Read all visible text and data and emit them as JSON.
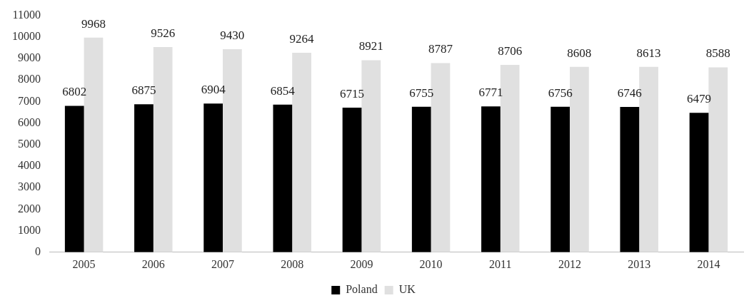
{
  "chart_data": {
    "type": "bar",
    "categories": [
      "2005",
      "2006",
      "2007",
      "2008",
      "2009",
      "2010",
      "2011",
      "2012",
      "2013",
      "2014"
    ],
    "series": [
      {
        "name": "Poland",
        "color": "#000000",
        "values": [
          6802,
          6875,
          6904,
          6854,
          6715,
          6755,
          6771,
          6756,
          6746,
          6479
        ]
      },
      {
        "name": "UK",
        "color": "#e0e0e0",
        "values": [
          9968,
          9526,
          9430,
          9264,
          8921,
          8787,
          8706,
          8608,
          8613,
          8588
        ]
      }
    ],
    "ylim": [
      0,
      11000
    ],
    "yticks": [
      0,
      1000,
      2000,
      3000,
      4000,
      5000,
      6000,
      7000,
      8000,
      9000,
      10000,
      11000
    ],
    "grid": false,
    "legend": "bottom",
    "data_labels": true
  }
}
